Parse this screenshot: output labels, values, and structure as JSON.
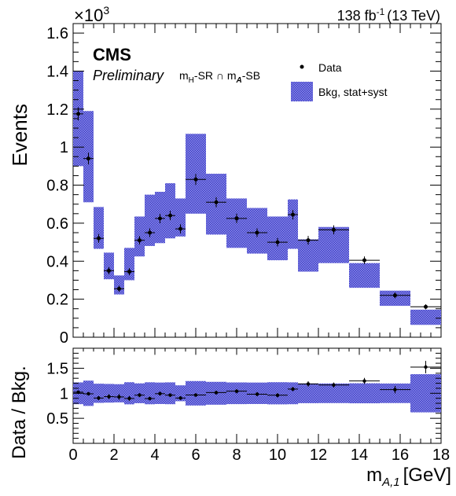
{
  "header": {
    "experiment": "CMS",
    "status": "Preliminary",
    "region_label": "m",
    "lumi_text": "138 fb",
    "lumi_exp": "-1",
    "energy_text": "(13 TeV)",
    "y_multiplier": "×10",
    "y_multiplier_exp": "3"
  },
  "chart_data": {
    "type": "scatter",
    "title": "",
    "region": "mH-SR ∩ mA-SB",
    "xlabel": "m",
    "xlabel_sub": "A,1",
    "xlabel_unit": "[GeV]",
    "ylabel_top": "Events",
    "ylabel_bottom": "Data / Bkg.",
    "xlim": [
      0,
      18
    ],
    "ylim_top": [
      0,
      1650
    ],
    "ylim_bottom": [
      0,
      1.9
    ],
    "x_ticks": [
      0,
      2,
      4,
      6,
      8,
      10,
      12,
      14,
      16,
      18
    ],
    "x_tick_labels": [
      "0",
      "2",
      "4",
      "6",
      "8",
      "10",
      "12",
      "14",
      "16",
      "18"
    ],
    "y_ticks_top": [
      0,
      200,
      400,
      600,
      800,
      1000,
      1200,
      1400,
      1600
    ],
    "y_tick_labels_top": [
      "0",
      "0.2",
      "0.4",
      "0.6",
      "0.8",
      "1",
      "1.2",
      "1.4",
      "1.6"
    ],
    "y_ticks_bottom": [
      0.5,
      1,
      1.5
    ],
    "y_tick_labels_bottom": [
      "0.5",
      "1",
      "1.5"
    ],
    "legend": {
      "placement": "top-right",
      "entries": [
        {
          "label": "Data",
          "marker": "point"
        },
        {
          "label": "Bkg, stat+syst",
          "marker": "band"
        }
      ]
    },
    "colors": {
      "band": "#5c5cd6",
      "data": "#000000"
    },
    "bins": [
      {
        "xlow": 0.0,
        "xhigh": 0.5,
        "bkg": 1150,
        "bkg_err": 250,
        "data": 1175,
        "data_err": 34
      },
      {
        "xlow": 0.5,
        "xhigh": 1.0,
        "bkg": 950,
        "bkg_err": 240,
        "data": 940,
        "data_err": 31
      },
      {
        "xlow": 1.0,
        "xhigh": 1.5,
        "bkg": 575,
        "bkg_err": 110,
        "data": 520,
        "data_err": 23
      },
      {
        "xlow": 1.5,
        "xhigh": 2.0,
        "bkg": 375,
        "bkg_err": 70,
        "data": 350,
        "data_err": 19
      },
      {
        "xlow": 2.0,
        "xhigh": 2.5,
        "bkg": 275,
        "bkg_err": 50,
        "data": 255,
        "data_err": 16
      },
      {
        "xlow": 2.5,
        "xhigh": 3.0,
        "bkg": 385,
        "bkg_err": 85,
        "data": 345,
        "data_err": 19
      },
      {
        "xlow": 3.0,
        "xhigh": 3.5,
        "bkg": 530,
        "bkg_err": 105,
        "data": 510,
        "data_err": 22
      },
      {
        "xlow": 3.5,
        "xhigh": 4.0,
        "bkg": 615,
        "bkg_err": 135,
        "data": 550,
        "data_err": 23
      },
      {
        "xlow": 4.0,
        "xhigh": 4.5,
        "bkg": 630,
        "bkg_err": 135,
        "data": 625,
        "data_err": 25
      },
      {
        "xlow": 4.5,
        "xhigh": 5.0,
        "bkg": 665,
        "bkg_err": 145,
        "data": 640,
        "data_err": 25
      },
      {
        "xlow": 5.0,
        "xhigh": 5.5,
        "bkg": 630,
        "bkg_err": 100,
        "data": 570,
        "data_err": 24
      },
      {
        "xlow": 5.5,
        "xhigh": 6.5,
        "bkg": 860,
        "bkg_err": 210,
        "data": 830,
        "data_err": 29
      },
      {
        "xlow": 6.5,
        "xhigh": 7.5,
        "bkg": 700,
        "bkg_err": 160,
        "data": 710,
        "data_err": 27
      },
      {
        "xlow": 7.5,
        "xhigh": 8.5,
        "bkg": 600,
        "bkg_err": 130,
        "data": 625,
        "data_err": 25
      },
      {
        "xlow": 8.5,
        "xhigh": 9.5,
        "bkg": 560,
        "bkg_err": 120,
        "data": 550,
        "data_err": 23
      },
      {
        "xlow": 9.5,
        "xhigh": 10.5,
        "bkg": 520,
        "bkg_err": 115,
        "data": 500,
        "data_err": 22
      },
      {
        "xlow": 10.5,
        "xhigh": 11.0,
        "bkg": 595,
        "bkg_err": 130,
        "data": 645,
        "data_err": 25
      },
      {
        "xlow": 11.0,
        "xhigh": 12.0,
        "bkg": 430,
        "bkg_err": 85,
        "data": 510,
        "data_err": 23
      },
      {
        "xlow": 12.0,
        "xhigh": 13.5,
        "bkg": 485,
        "bkg_err": 95,
        "data": 565,
        "data_err": 24
      },
      {
        "xlow": 13.5,
        "xhigh": 15.0,
        "bkg": 325,
        "bkg_err": 65,
        "data": 405,
        "data_err": 20
      },
      {
        "xlow": 15.0,
        "xhigh": 16.5,
        "bkg": 205,
        "bkg_err": 40,
        "data": 220,
        "data_err": 15
      },
      {
        "xlow": 16.5,
        "xhigh": 18.0,
        "bkg": 105,
        "bkg_err": 40,
        "data": 160,
        "data_err": 13
      }
    ]
  }
}
